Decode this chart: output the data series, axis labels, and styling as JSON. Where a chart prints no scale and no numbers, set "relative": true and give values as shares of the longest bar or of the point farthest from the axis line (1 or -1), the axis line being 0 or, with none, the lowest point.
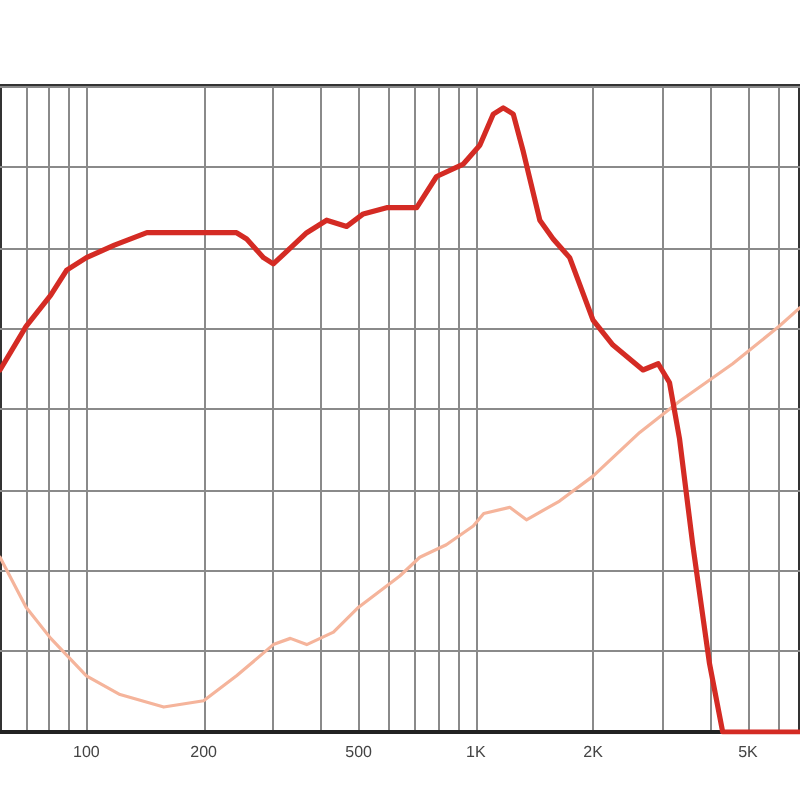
{
  "chart_data": {
    "type": "line",
    "relative": true,
    "log": "x",
    "grid": true,
    "tick_labels": "x",
    "marker": "none",
    "xlim": [
      60,
      6800
    ],
    "xticks": [
      {
        "value": 70,
        "label": null
      },
      {
        "value": 80,
        "label": null
      },
      {
        "value": 90,
        "label": null
      },
      100,
      200,
      {
        "value": 300,
        "label": null
      },
      {
        "value": 400,
        "label": null
      },
      500,
      {
        "value": 600,
        "label": null
      },
      {
        "value": 700,
        "label": null
      },
      {
        "value": 800,
        "label": null
      },
      {
        "value": 900,
        "label": null
      },
      {
        "value": 1000,
        "label": "1K"
      },
      {
        "value": 2000,
        "label": "2K"
      },
      {
        "value": 3000,
        "label": null
      },
      {
        "value": 4000,
        "label": null
      },
      {
        "value": 5000,
        "label": "5K"
      },
      {
        "value": 6000,
        "label": null
      }
    ],
    "series": [
      {
        "color": "#d42b24",
        "x": [
          60,
          70,
          81,
          89,
          100,
          118,
          143,
          174,
          200,
          243,
          258,
          285,
          302,
          327,
          368,
          414,
          466,
          514,
          590,
          638,
          705,
          793,
          929,
          1024,
          1109,
          1176,
          1248,
          1324,
          1460,
          1580,
          1742,
          2000,
          2250,
          2687,
          2940,
          3143,
          3335,
          3607,
          3981,
          4305,
          6800
        ],
        "values": [
          0.58,
          0.65,
          0.7,
          0.74,
          0.76,
          0.78,
          0.8,
          0.8,
          0.8,
          0.8,
          0.79,
          0.76,
          0.75,
          0.77,
          0.8,
          0.82,
          0.81,
          0.83,
          0.84,
          0.84,
          0.84,
          0.89,
          0.91,
          0.94,
          0.99,
          1,
          0.99,
          0.93,
          0.82,
          0.79,
          0.76,
          0.66,
          0.62,
          0.58,
          0.59,
          0.56,
          0.47,
          0.3,
          0.11,
          0,
          0
        ]
      },
      {
        "color": "#f5b49b",
        "x": [
          60,
          70,
          81,
          100,
          122,
          158,
          200,
          243,
          302,
          334,
          368,
          431,
          500,
          638,
          718,
          840,
          985,
          1048,
          1222,
          1349,
          1641,
          2000,
          2636,
          3335,
          4567,
          6010,
          6800
        ],
        "values": [
          0.28,
          0.2,
          0.15,
          0.09,
          0.06,
          0.04,
          0.05,
          0.09,
          0.14,
          0.15,
          0.14,
          0.16,
          0.2,
          0.25,
          0.28,
          0.3,
          0.33,
          0.35,
          0.36,
          0.34,
          0.37,
          0.41,
          0.48,
          0.53,
          0.59,
          0.65,
          0.68
        ]
      }
    ]
  }
}
